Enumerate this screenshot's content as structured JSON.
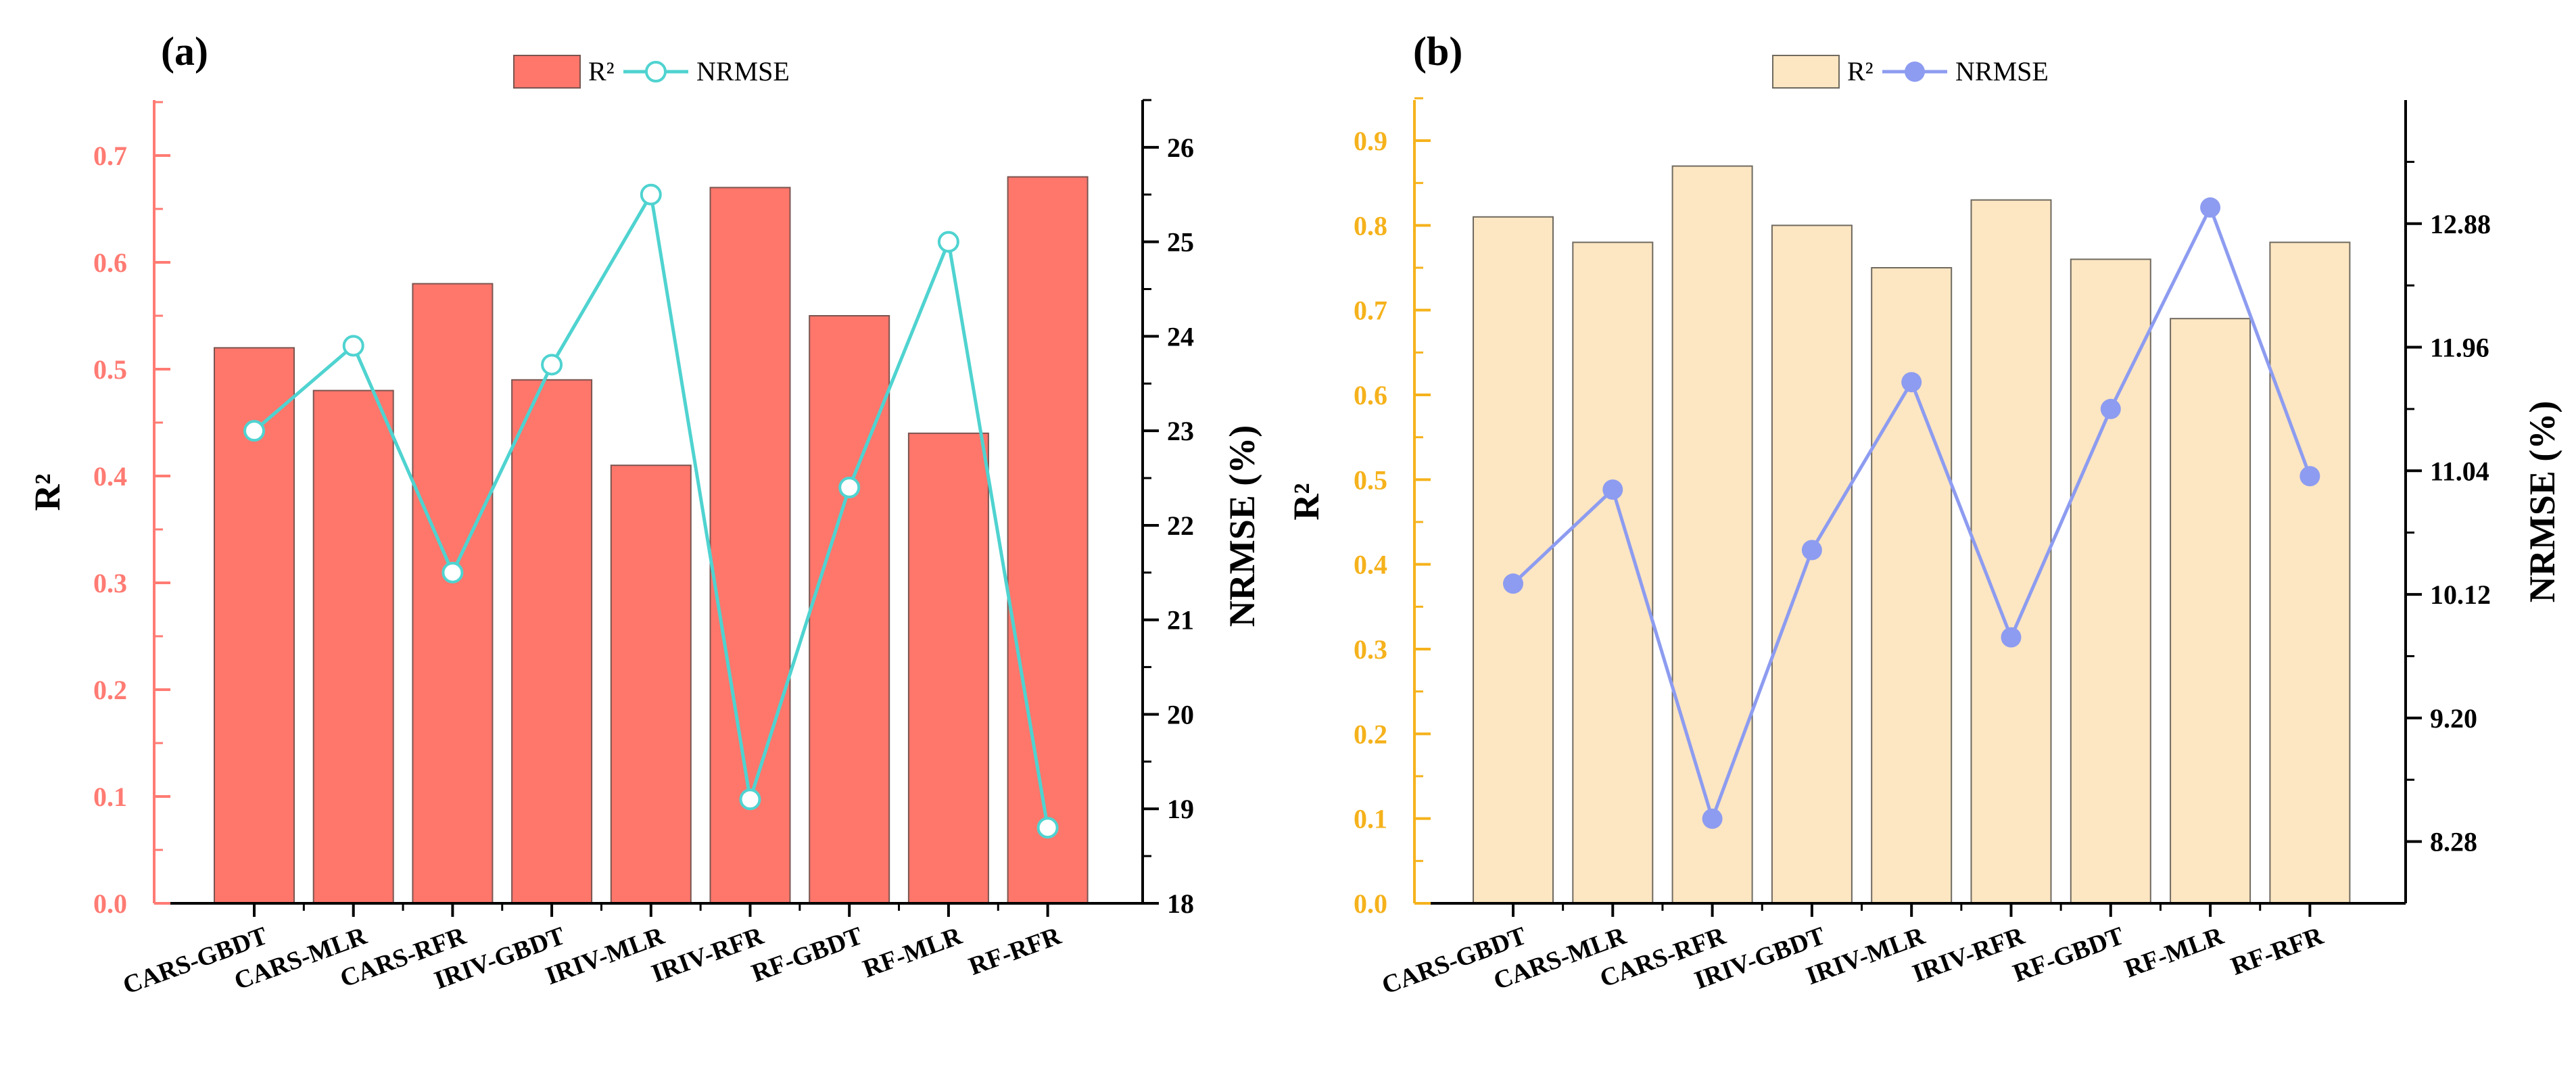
{
  "chart_data": [
    {
      "type": "bar",
      "panel_label": "(a)",
      "categories": [
        "CARS-GBDT",
        "CARS-MLR",
        "CARS-RFR",
        "IRIV-GBDT",
        "IRIV-MLR",
        "IRIV-RFR",
        "RF-GBDT",
        "RF-MLR",
        "RF-RFR"
      ],
      "series": [
        {
          "name": "R²",
          "kind": "bar",
          "axis": "left",
          "values": [
            0.52,
            0.48,
            0.58,
            0.49,
            0.41,
            0.67,
            0.55,
            0.44,
            0.68
          ]
        },
        {
          "name": "NRMSE",
          "kind": "line",
          "axis": "right",
          "marker": "open-circle",
          "values": [
            23.0,
            23.9,
            21.5,
            23.7,
            25.5,
            19.1,
            22.4,
            25.0,
            18.8
          ]
        }
      ],
      "ylabel": "R²",
      "y2label": "NRMSE (%)",
      "ylim": [
        0,
        0.75
      ],
      "y2lim": [
        18,
        26.5
      ],
      "yticks": [
        "0.0",
        "0.1",
        "0.2",
        "0.3",
        "0.4",
        "0.5",
        "0.6",
        "0.7"
      ],
      "y2ticks": [
        "18",
        "19",
        "20",
        "21",
        "22",
        "23",
        "24",
        "25",
        "26"
      ],
      "legend": [
        "R²",
        "NRMSE"
      ],
      "legend_position": "top-center",
      "colors": {
        "bar": "#ff766b",
        "bar_edge": "#7a5550",
        "line": "#4fd3d0",
        "left_axis": "#ff7b73"
      }
    },
    {
      "type": "bar",
      "panel_label": "(b)",
      "categories": [
        "CARS-GBDT",
        "CARS-MLR",
        "CARS-RFR",
        "IRIV-GBDT",
        "IRIV-MLR",
        "IRIV-RFR",
        "RF-GBDT",
        "RF-MLR",
        "RF-RFR"
      ],
      "series": [
        {
          "name": "R²",
          "kind": "bar",
          "axis": "left",
          "values": [
            0.81,
            0.78,
            0.87,
            0.8,
            0.75,
            0.83,
            0.76,
            0.69,
            0.78
          ]
        },
        {
          "name": "NRMSE",
          "kind": "line",
          "axis": "right",
          "marker": "filled-circle",
          "values": [
            10.2,
            10.9,
            8.45,
            10.45,
            11.7,
            9.8,
            11.5,
            13.0,
            11.0
          ]
        }
      ],
      "ylabel": "R²",
      "y2label": "NRMSE (%)",
      "ylim": [
        0,
        0.95
      ],
      "y2lim": [
        7.82,
        13.8
      ],
      "yticks": [
        "0.0",
        "0.1",
        "0.2",
        "0.3",
        "0.4",
        "0.5",
        "0.6",
        "0.7",
        "0.8",
        "0.9"
      ],
      "y2ticks": [
        "8.28",
        "9.20",
        "10.12",
        "11.04",
        "11.96",
        "12.88"
      ],
      "legend": [
        "R²",
        "NRMSE"
      ],
      "legend_position": "top-center",
      "colors": {
        "bar": "#fde6c2",
        "bar_edge": "#6f6a60",
        "line": "#8d9cf0",
        "left_axis": "#f5b21c"
      }
    }
  ]
}
